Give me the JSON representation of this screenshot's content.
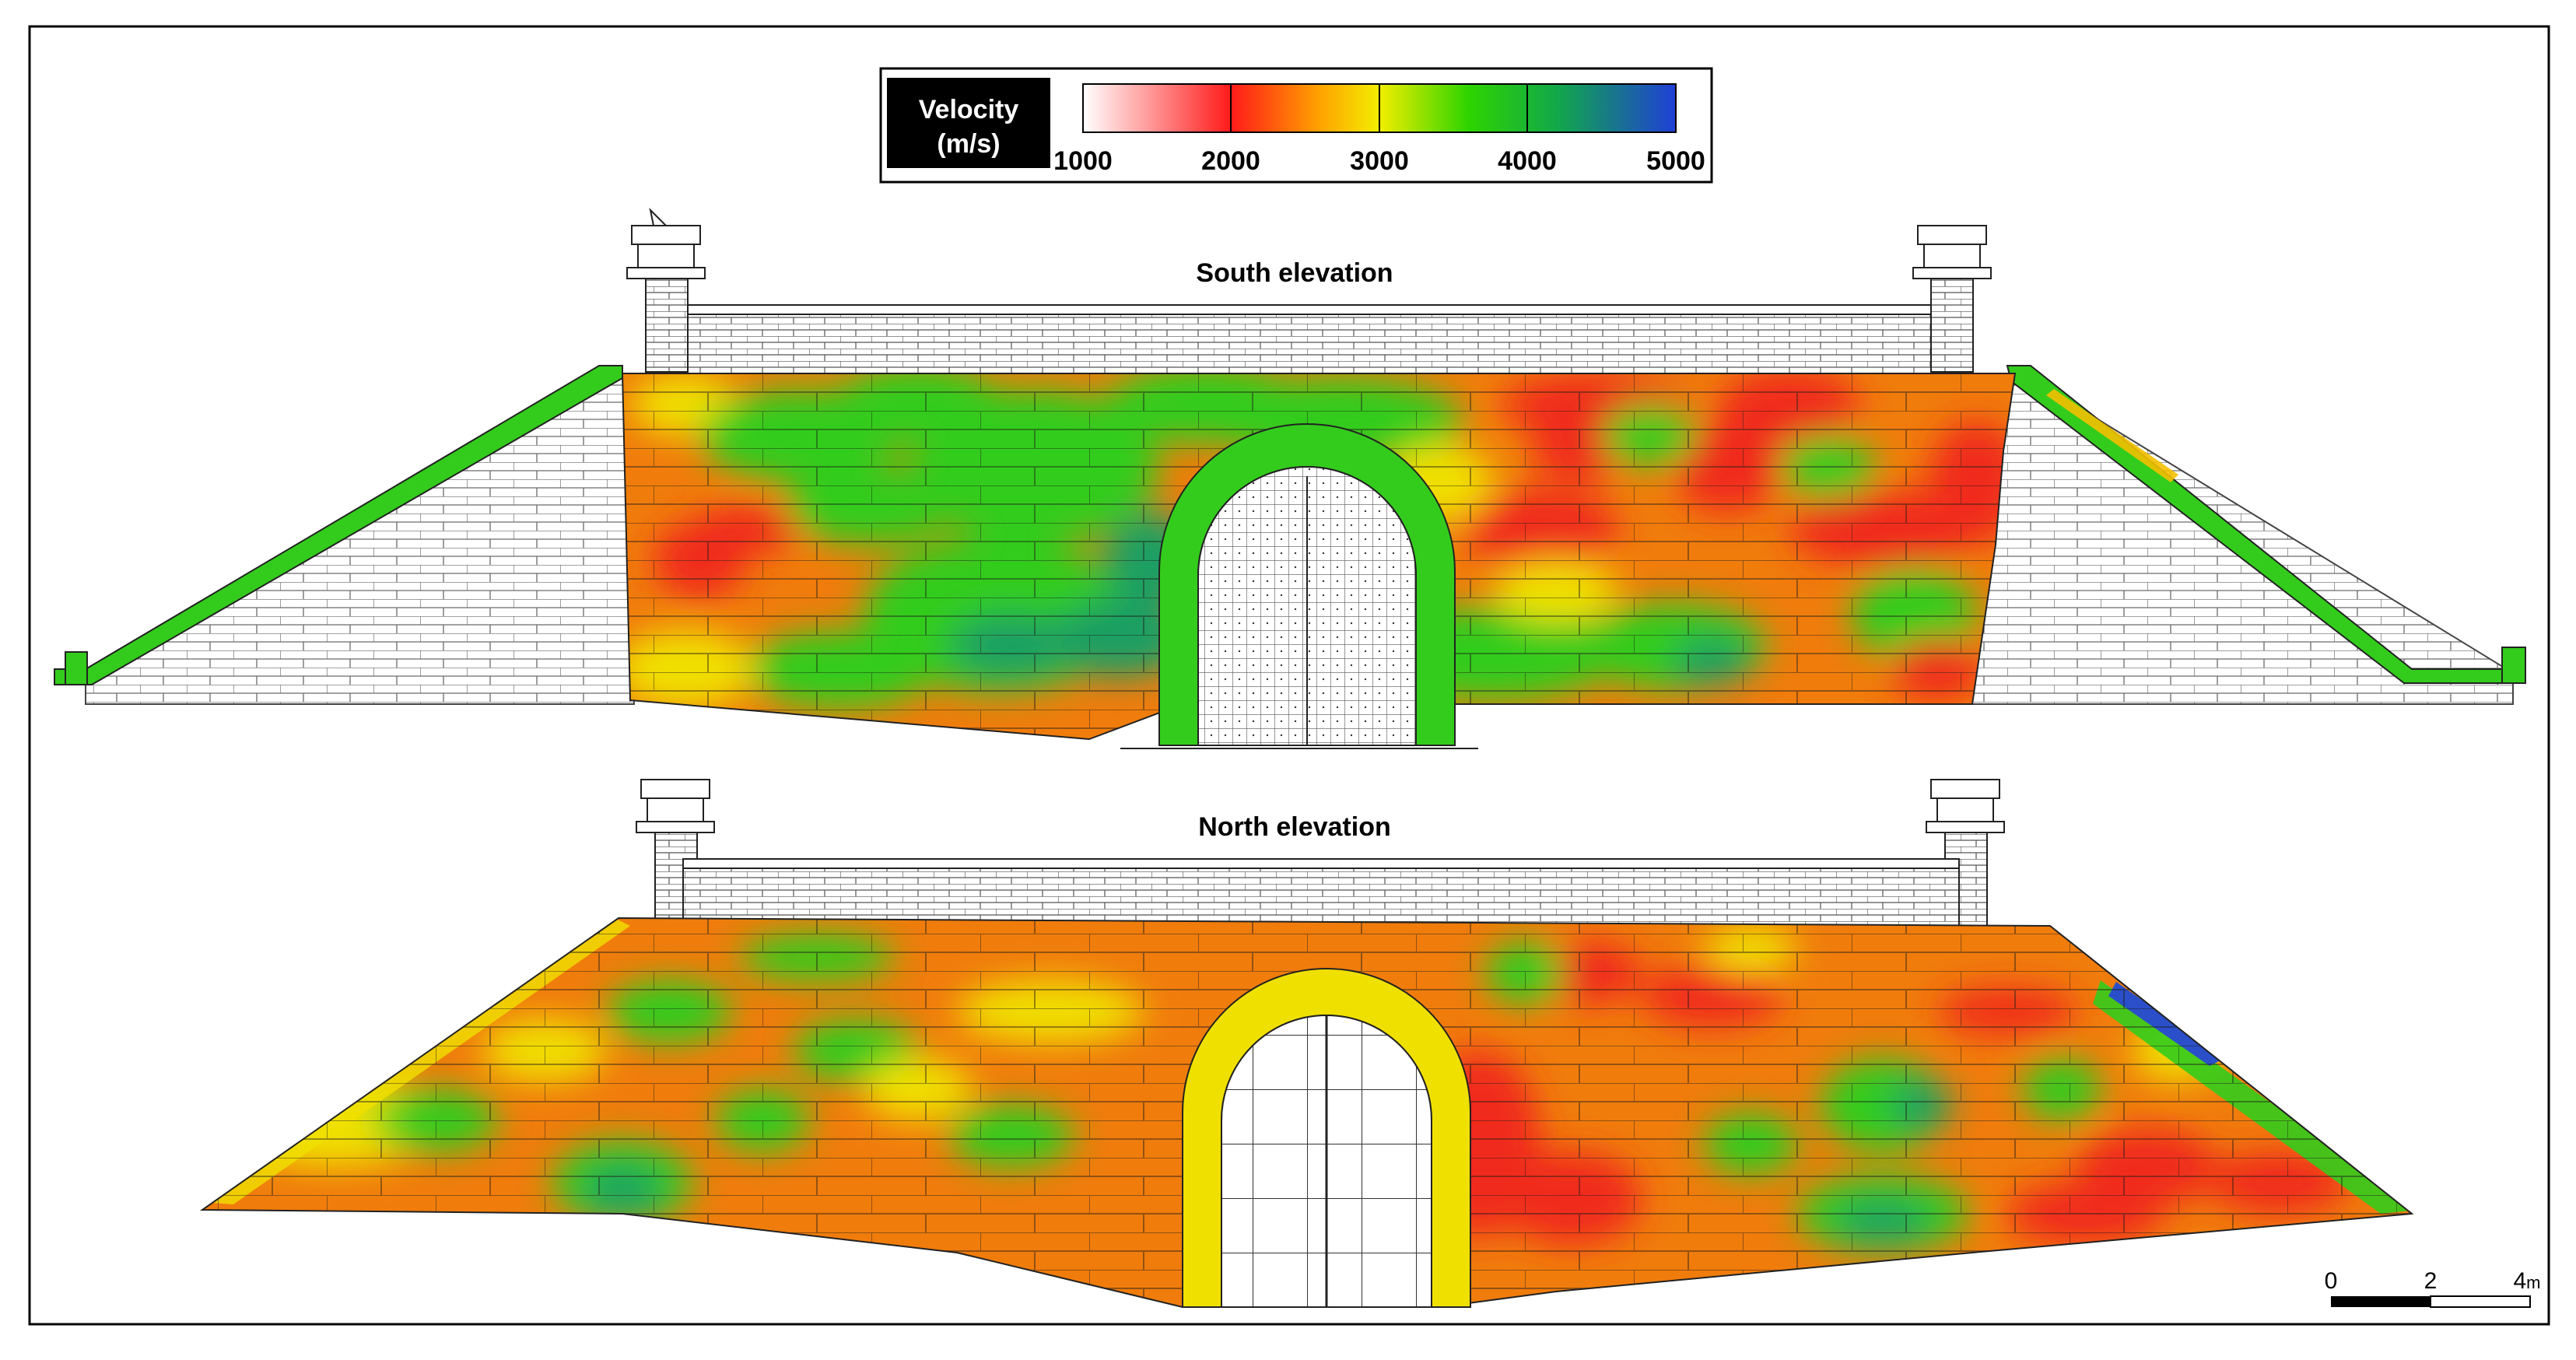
{
  "legend": {
    "label_line1": "Velocity",
    "label_line2": "(m/s)",
    "ticks": [
      "1000",
      "2000",
      "3000",
      "4000",
      "5000"
    ],
    "colors": [
      "#ffffff",
      "#ff1a1a",
      "#ffa300",
      "#f2ee00",
      "#2ed400",
      "#12a84a",
      "#1f3fd6"
    ]
  },
  "elevations": {
    "south": {
      "title": "South elevation"
    },
    "north": {
      "title": "North elevation"
    }
  },
  "scale_bar": {
    "labels": [
      "0",
      "2",
      "4"
    ],
    "unit": "m"
  },
  "palette": {
    "red": "#f02a1c",
    "orange": "#f07c0c",
    "yellow": "#f0e000",
    "green": "#33cc1c",
    "teal": "#1a9f63",
    "blue": "#2a4fc8",
    "line": "#222222"
  }
}
